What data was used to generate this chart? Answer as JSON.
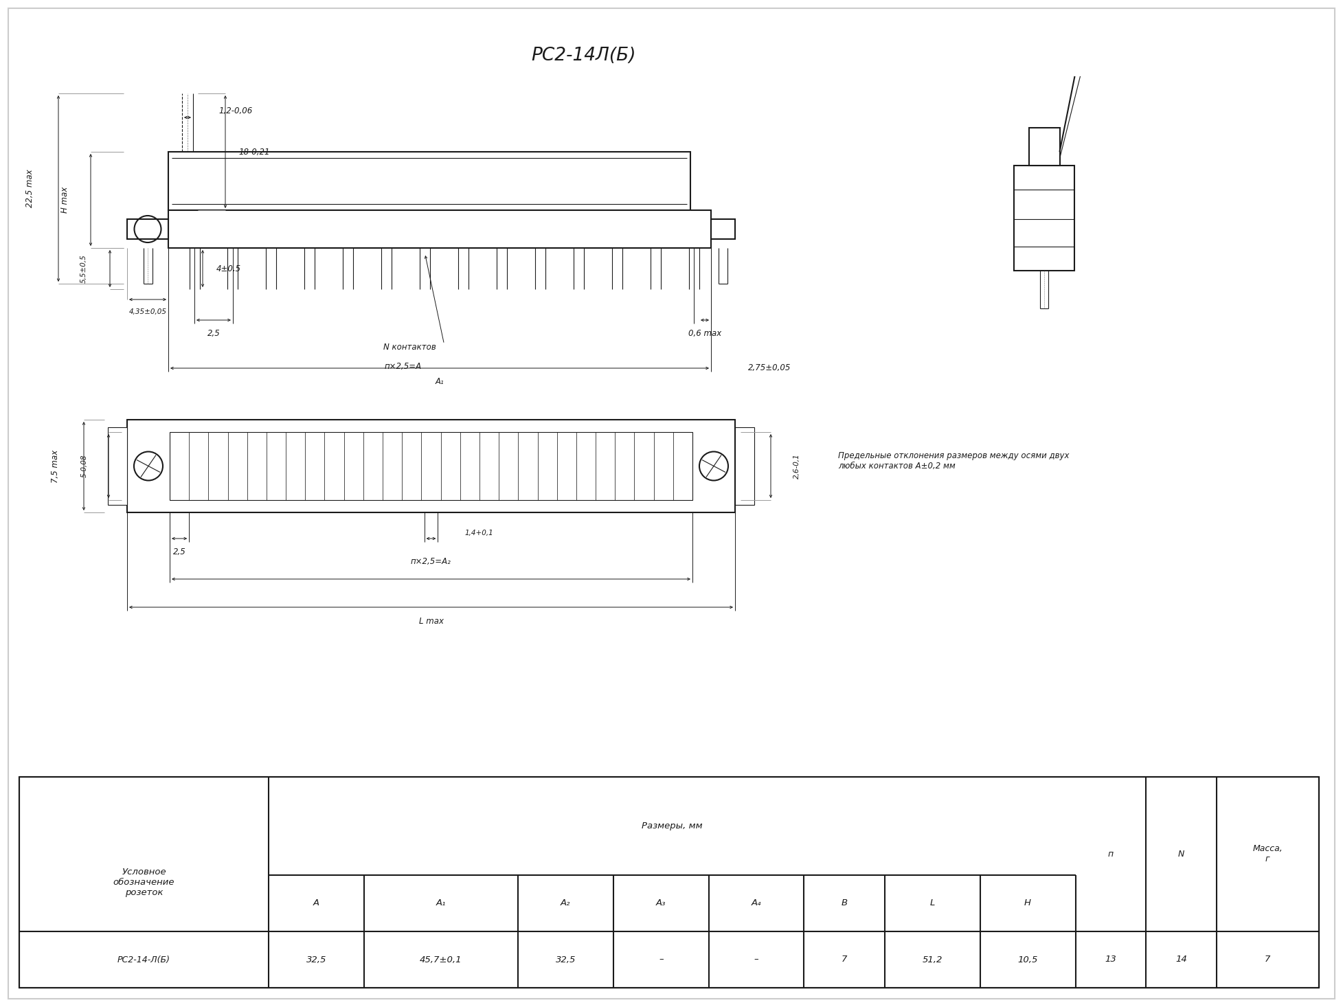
{
  "title": "РС2-14Л(Б)",
  "bg_color": "#ffffff",
  "line_color": "#1a1a1a",
  "table": {
    "col0_header": "Условное\nобозначение\nрозеток",
    "sizes_header": "Размеры, мм",
    "sub_headers": [
      "А",
      "А₁",
      "А₂",
      "А₃",
      "А₄",
      "В",
      "L",
      "Н"
    ],
    "last_headers": [
      "п",
      "N",
      "Масса,\nг"
    ],
    "data_row": [
      "РС2-14-Л(Б)",
      "32,5",
      "45,7±0,1",
      "32,5",
      "–",
      "–",
      "7",
      "51,2",
      "10,5",
      "13",
      "14",
      "7"
    ],
    "col_widths": [
      1.7,
      0.65,
      1.05,
      0.65,
      0.65,
      0.65,
      0.55,
      0.65,
      0.65,
      0.48,
      0.48,
      0.7
    ]
  },
  "dim_22_5": "22,5 max",
  "dim_H": "Н max",
  "dim_5_5": "5,5±0,5",
  "dim_4_35": "4,35±0,05",
  "dim_18": "18-0,21",
  "dim_1_2": "1,2-0,06",
  "dim_4": "4±0,5",
  "dim_2_5": "2,5",
  "dim_N": "N контактов",
  "dim_n25A": "п×2,5=А",
  "dim_0_6": "0,6 max",
  "dim_A1": "А₁",
  "dim_2_75": "2,75±0,05",
  "dim_7_5": "7,5 max",
  "dim_5": "5-0,08",
  "dim_2_5b": "2,5",
  "dim_1_4": "1,4+0,1",
  "dim_n25A2": "п×2,5=А₂",
  "dim_L": "L max",
  "dim_2_6": "2,6-0,1",
  "note": "Предельные отклонения размеров между осями двух\nлюбых контактов А±0,2 мм"
}
